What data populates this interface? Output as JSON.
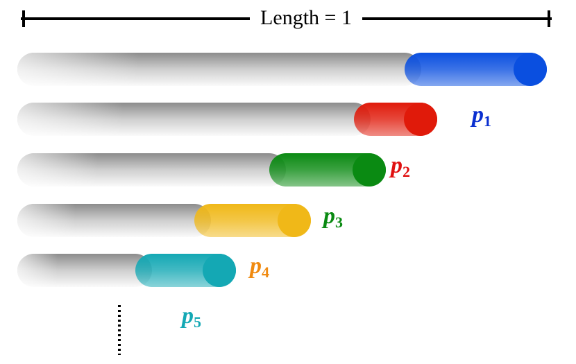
{
  "header": {
    "title": "Length = 1"
  },
  "labels": [
    {
      "base": "p",
      "sub": "1"
    },
    {
      "base": "p",
      "sub": "2"
    },
    {
      "base": "p",
      "sub": "3"
    },
    {
      "base": "p",
      "sub": "4"
    },
    {
      "base": "p",
      "sub": "5"
    }
  ]
}
